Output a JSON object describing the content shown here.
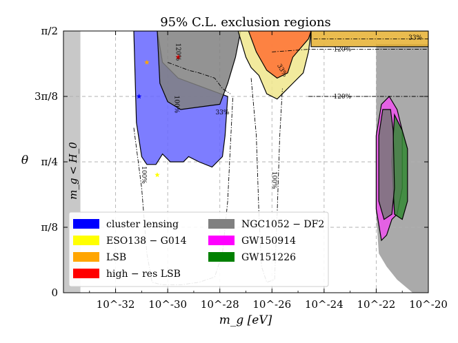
{
  "chart_data": {
    "type": "area",
    "title": "95% C.L. exclusion regions",
    "xlabel": "m_g [eV]",
    "ylabel": "θ",
    "xscale": "log",
    "xlim": [
      1e-34,
      1e-20
    ],
    "ylim_label": [
      "0",
      "π/2"
    ],
    "x_ticks": [
      {
        "exp": -32,
        "label": "10^-32"
      },
      {
        "exp": -30,
        "label": "10^-30"
      },
      {
        "exp": -28,
        "label": "10^-28"
      },
      {
        "exp": -26,
        "label": "10^-26"
      },
      {
        "exp": -24,
        "label": "10^-24"
      },
      {
        "exp": -22,
        "label": "10^-22"
      },
      {
        "exp": -20,
        "label": "10^-20"
      }
    ],
    "y_ticks": [
      {
        "frac": 0.0,
        "label": "0"
      },
      {
        "frac": 0.25,
        "label": "π/8"
      },
      {
        "frac": 0.5,
        "label": "π/4"
      },
      {
        "frac": 0.75,
        "label": "3π/8"
      },
      {
        "frac": 1.0,
        "label": "π/2"
      }
    ],
    "excluded_band_label": "m_g < H_0",
    "contour_labels": [
      "33%",
      "120%",
      "120%",
      "120%",
      "100%",
      "100%",
      "100%",
      "33%",
      "33%"
    ],
    "legend": [
      {
        "name": "cluster lensing",
        "color": "#0000ff"
      },
      {
        "name": "NGC1052 − DF2",
        "color": "#808080"
      },
      {
        "name": "ESO138 − G014",
        "color": "#ffff00"
      },
      {
        "name": "GW150914",
        "color": "#ff00ff"
      },
      {
        "name": "LSB",
        "color": "#ffa500"
      },
      {
        "name": "GW151226",
        "color": "#008000"
      },
      {
        "name": "high − res LSB",
        "color": "#ff0000"
      }
    ],
    "regions": [
      {
        "name": "cluster lensing",
        "color": "#6666ff",
        "points": [
          [
            -31.3,
            1.0
          ],
          [
            -31.2,
            0.65
          ],
          [
            -31.0,
            0.52
          ],
          [
            -30.8,
            0.49
          ],
          [
            -30.45,
            0.49
          ],
          [
            -30.2,
            0.53
          ],
          [
            -29.9,
            0.5
          ],
          [
            -29.4,
            0.5
          ],
          [
            -29.2,
            0.52
          ],
          [
            -28.8,
            0.5
          ],
          [
            -28.3,
            0.48
          ],
          [
            -27.9,
            0.52
          ],
          [
            -27.8,
            0.6
          ],
          [
            -27.7,
            0.75
          ],
          [
            -29.6,
            0.82
          ],
          [
            -30.2,
            0.88
          ],
          [
            -30.4,
            1.0
          ]
        ]
      },
      {
        "name": "NGC1052 − DF2",
        "color": "#808080",
        "points": [
          [
            -30.4,
            1.0
          ],
          [
            -30.3,
            0.8
          ],
          [
            -30.0,
            0.73
          ],
          [
            -29.5,
            0.7
          ],
          [
            -28.0,
            0.72
          ],
          [
            -27.7,
            0.8
          ],
          [
            -27.4,
            0.9
          ],
          [
            -27.2,
            1.0
          ]
        ]
      },
      {
        "name": "ESO138 − G014",
        "color": "#f0e68c",
        "points": [
          [
            -27.3,
            1.0
          ],
          [
            -27.0,
            0.9
          ],
          [
            -26.8,
            0.86
          ],
          [
            -26.5,
            0.83
          ],
          [
            -26.2,
            0.76
          ],
          [
            -25.8,
            0.74
          ],
          [
            -25.5,
            0.77
          ],
          [
            -25.2,
            0.8
          ],
          [
            -24.8,
            0.84
          ],
          [
            -24.6,
            0.92
          ],
          [
            -24.5,
            1.0
          ]
        ]
      },
      {
        "name": "LSB",
        "color": "#e6b030",
        "points": [
          [
            -24.5,
            1.0
          ],
          [
            -24.5,
            0.94
          ],
          [
            -20,
            0.94
          ],
          [
            -20,
            1.0
          ]
        ]
      },
      {
        "name": "high − res LSB",
        "color": "#ff7033",
        "points": [
          [
            -26.9,
            1.0
          ],
          [
            -26.6,
            0.92
          ],
          [
            -26.2,
            0.85
          ],
          [
            -25.8,
            0.82
          ],
          [
            -25.4,
            0.84
          ],
          [
            -25.2,
            0.9
          ],
          [
            -24.6,
            0.97
          ],
          [
            -24.5,
            1.0
          ]
        ]
      },
      {
        "name": "GW150914",
        "color": "#ee55ee",
        "points": [
          [
            -21.8,
            0.72
          ],
          [
            -21.5,
            0.75
          ],
          [
            -21.2,
            0.7
          ],
          [
            -21.0,
            0.62
          ],
          [
            -21.0,
            0.4
          ],
          [
            -21.2,
            0.3
          ],
          [
            -21.4,
            0.28
          ],
          [
            -21.6,
            0.22
          ],
          [
            -21.8,
            0.2
          ],
          [
            -22.0,
            0.32
          ],
          [
            -22.0,
            0.6
          ]
        ]
      },
      {
        "name": "GW151226",
        "color": "#338833",
        "points": [
          [
            -21.3,
            0.68
          ],
          [
            -21.0,
            0.62
          ],
          [
            -20.8,
            0.55
          ],
          [
            -20.8,
            0.35
          ],
          [
            -21.0,
            0.28
          ],
          [
            -21.3,
            0.3
          ],
          [
            -21.4,
            0.5
          ]
        ]
      },
      {
        "name": "NGC1052 − DF2 (high mass)",
        "color": "#777777",
        "points": [
          [
            -21.75,
            0.7
          ],
          [
            -21.45,
            0.7
          ],
          [
            -21.35,
            0.62
          ],
          [
            -21.3,
            0.4
          ],
          [
            -21.4,
            0.3
          ],
          [
            -21.7,
            0.28
          ],
          [
            -21.9,
            0.35
          ],
          [
            -21.9,
            0.6
          ]
        ]
      }
    ],
    "background_shade": {
      "color": "#aaaaaa",
      "points": [
        [
          -22.0,
          0.0
        ],
        [
          -22.0,
          0.95
        ],
        [
          -20,
          0.95
        ],
        [
          -20,
          0.0
        ],
        [
          -20.6,
          0.0
        ],
        [
          -21.2,
          0.05
        ],
        [
          -21.6,
          0.1
        ],
        [
          -21.9,
          0.15
        ],
        [
          -22.0,
          0.3
        ]
      ]
    },
    "left_band": {
      "x_from": -34,
      "x_to": -33.35,
      "color": "#c8c8c8"
    },
    "markers": [
      {
        "x": -31.1,
        "y": 0.75,
        "color": "#0000ff"
      },
      {
        "x": -30.8,
        "y": 0.88,
        "color": "#ffa500"
      },
      {
        "x": -30.4,
        "y": 0.45,
        "color": "#ffff00"
      },
      {
        "x": -29.6,
        "y": 0.9,
        "color": "#ff0000"
      }
    ]
  }
}
